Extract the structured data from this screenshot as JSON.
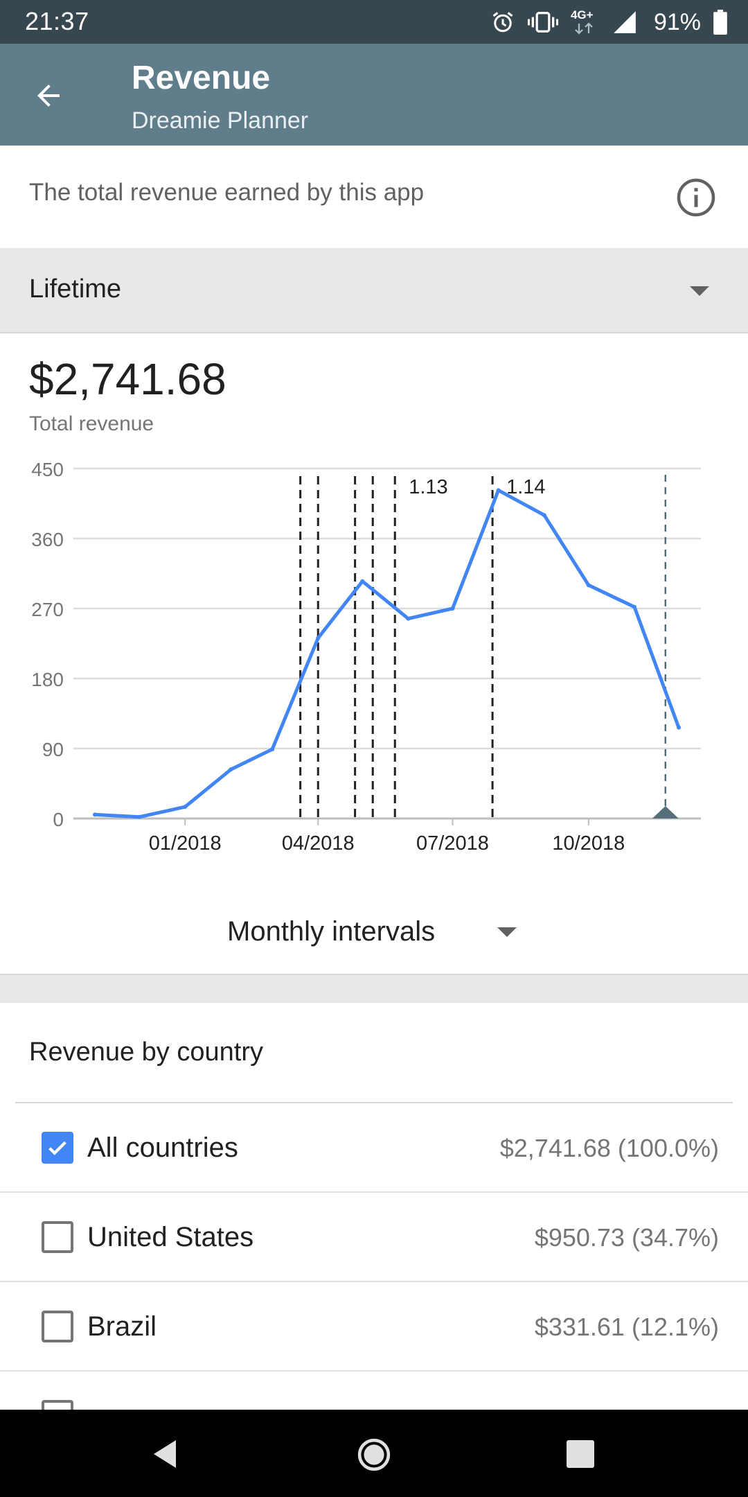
{
  "status_bar": {
    "time": "21:37",
    "network": "4G+",
    "battery": "91%",
    "icons": [
      "alarm-icon",
      "vibrate-icon",
      "network-4g-icon",
      "signal-icon",
      "battery-icon"
    ]
  },
  "app_bar": {
    "title": "Revenue",
    "subtitle": "Dreamie Planner",
    "back_icon": "arrow-back-icon",
    "color": "#607d8b"
  },
  "description": {
    "text": "The total revenue earned by this app",
    "info_icon": "info-icon"
  },
  "period": {
    "selected": "Lifetime"
  },
  "summary": {
    "value": "$2,741.68",
    "label": "Total revenue"
  },
  "chart_data": {
    "type": "line",
    "title": "",
    "xlabel": "",
    "ylabel": "",
    "ylim": [
      0,
      450
    ],
    "y_ticks": [
      "0",
      "90",
      "180",
      "270",
      "360",
      "450"
    ],
    "x_ticks": [
      "01/2018",
      "04/2018",
      "07/2018",
      "10/2018"
    ],
    "grid": true,
    "line_color": "#4285f4",
    "series": [
      {
        "x": [
          "2017-11",
          "2017-12",
          "2018-01",
          "2018-02",
          "2018-03",
          "2018-04",
          "2018-05",
          "2018-06",
          "2018-07",
          "2018-08",
          "2018-09",
          "2018-10",
          "2018-11",
          "2018-12"
        ],
        "values": [
          5,
          2,
          15,
          63,
          89,
          232,
          305,
          257,
          270,
          422,
          390,
          300,
          272,
          117
        ]
      }
    ],
    "annotation_lines": [
      {
        "x": "2018-03-20"
      },
      {
        "x": "2018-04-01"
      },
      {
        "x": "2018-04-26"
      },
      {
        "x": "2018-05-08"
      },
      {
        "x": "2018-05-23",
        "label": "1.13"
      },
      {
        "x": "2018-07-28",
        "label": "1.14"
      }
    ],
    "marker": {
      "x": "2018-11-22",
      "color": "#546e7a"
    }
  },
  "interval": {
    "selected": "Monthly intervals"
  },
  "by_country": {
    "heading": "Revenue by country",
    "rows": [
      {
        "name": "All countries",
        "value": "$2,741.68 (100.0%)",
        "checked": true
      },
      {
        "name": "United States",
        "value": "$950.73 (34.7%)",
        "checked": false
      },
      {
        "name": "Brazil",
        "value": "$331.61 (12.1%)",
        "checked": false
      }
    ]
  },
  "nav_bar": {
    "icons": [
      "nav-back-icon",
      "nav-home-icon",
      "nav-recents-icon"
    ]
  }
}
